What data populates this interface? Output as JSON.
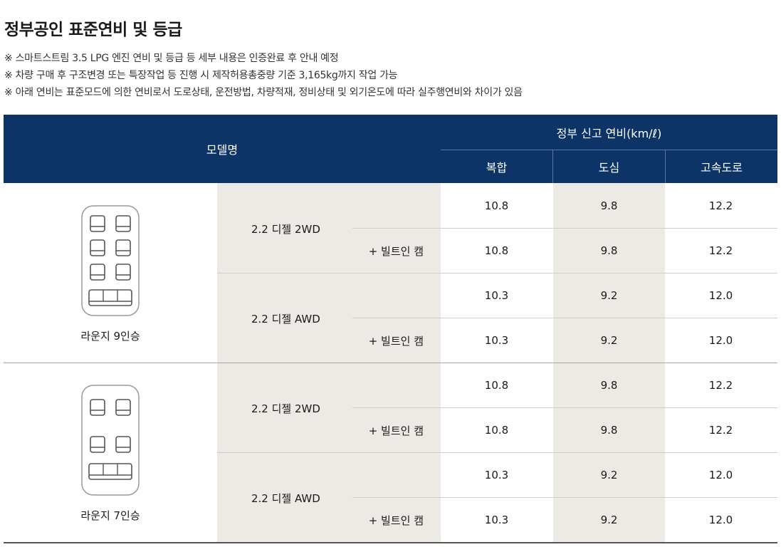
{
  "title": "정부공인 표준연비 및 등급",
  "notes": [
    "※ 스마트스트림 3.5 LPG 엔진 연비 및 등급 등 세부 내용은 인증완료 후 안내 예정",
    "※ 차량 구매 후 구조변경 또는 특장작업 등 진행 시 제작허용총중량 기준 3,165kg까지 작업 가능",
    "※ 아래 연비는 표준모드에 의한 연비로서 도로상태, 운전방법, 차량적재, 정비상태 및 외기온도에 따라 실주행연비와 차이가 있음"
  ],
  "table": {
    "model_header": "모델명",
    "fuel_header": "정부 신고 연비(km/ℓ)",
    "sub_headers": [
      "복합",
      "도심",
      "고속도로"
    ],
    "models": [
      {
        "name": "라운지 9인승",
        "icon": "van-9-seat-layout-icon",
        "trims": [
          {
            "name": "2.2 디젤 2WD",
            "rows": [
              {
                "option": "",
                "values": [
                  "10.8",
                  "9.8",
                  "12.2"
                ]
              },
              {
                "option": "+ 빌트인 캠",
                "values": [
                  "10.8",
                  "9.8",
                  "12.2"
                ]
              }
            ]
          },
          {
            "name": "2.2 디젤 AWD",
            "rows": [
              {
                "option": "",
                "values": [
                  "10.3",
                  "9.2",
                  "12.0"
                ]
              },
              {
                "option": "+ 빌트인 캠",
                "values": [
                  "10.3",
                  "9.2",
                  "12.0"
                ]
              }
            ]
          }
        ]
      },
      {
        "name": "라운지 7인승",
        "icon": "van-7-seat-layout-icon",
        "trims": [
          {
            "name": "2.2 디젤 2WD",
            "rows": [
              {
                "option": "",
                "values": [
                  "10.8",
                  "9.8",
                  "12.2"
                ]
              },
              {
                "option": "+ 빌트인 캠",
                "values": [
                  "10.8",
                  "9.8",
                  "12.2"
                ]
              }
            ]
          },
          {
            "name": "2.2 디젤 AWD",
            "rows": [
              {
                "option": "",
                "values": [
                  "10.3",
                  "9.2",
                  "12.0"
                ]
              },
              {
                "option": "+ 빌트인 캠",
                "values": [
                  "10.3",
                  "9.2",
                  "12.0"
                ]
              }
            ]
          }
        ]
      }
    ]
  }
}
